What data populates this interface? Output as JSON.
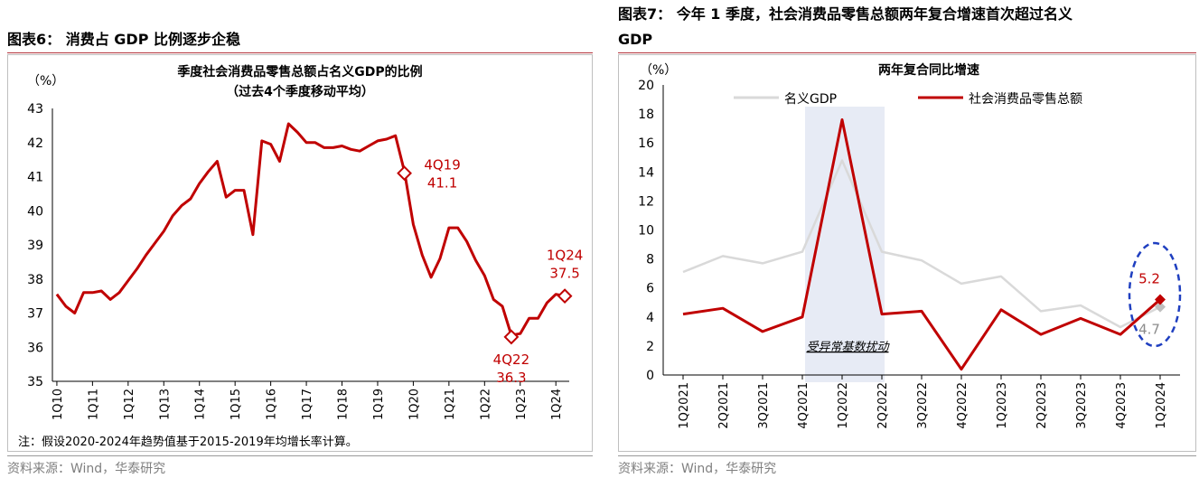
{
  "left_panel": {
    "header": "图表6： 消费占 GDP 比例逐步企稳",
    "source": "资料来源：Wind，华泰研究"
  },
  "right_panel": {
    "header_line1": "图表7： 今年 1 季度，社会消费品零售总额两年复合增速首次超过名义",
    "header_line2": "GDP",
    "source": "资料来源：Wind，华泰研究"
  },
  "colors": {
    "header_rule": "#b4343c",
    "series_red": "#c00000",
    "series_grey": "#d9d9d9",
    "shade": "#e7ebf5",
    "dashed_ellipse": "#1f3fc0"
  },
  "chart_data": [
    {
      "type": "line",
      "title": "季度社会消费品零售总额占名义GDP的比例",
      "subtitle": "（过去4个季度移动平均）",
      "ylabel": "（%）",
      "ylim": [
        35,
        43
      ],
      "yticks": [
        35,
        36,
        37,
        38,
        39,
        40,
        41,
        42,
        43
      ],
      "x_tick_labels": [
        "1Q10",
        "1Q11",
        "1Q12",
        "1Q13",
        "1Q14",
        "1Q15",
        "1Q16",
        "1Q17",
        "1Q18",
        "1Q19",
        "1Q20",
        "1Q21",
        "1Q22",
        "1Q23",
        "1Q24"
      ],
      "x_count": 58,
      "series": [
        {
          "values": [
            37.55,
            37.2,
            37.0,
            37.6,
            37.6,
            37.65,
            37.4,
            37.6,
            37.95,
            38.3,
            38.7,
            39.05,
            39.4,
            39.85,
            40.15,
            40.35,
            40.8,
            41.15,
            41.45,
            40.4,
            40.6,
            40.6,
            39.3,
            42.05,
            41.95,
            41.45,
            42.55,
            42.3,
            42.0,
            42.0,
            41.85,
            41.85,
            41.9,
            41.8,
            41.75,
            41.9,
            42.05,
            42.1,
            42.2,
            41.15,
            39.6,
            38.7,
            38.05,
            38.6,
            39.5,
            39.5,
            39.1,
            38.55,
            38.1,
            37.4,
            37.2,
            36.35,
            36.4,
            36.85,
            36.85,
            37.3,
            37.55,
            37.5
          ],
          "color": "#c00000"
        }
      ],
      "markers": [
        {
          "index": 39,
          "value": 41.1,
          "label_top": "4Q19",
          "label_bottom": "41.1"
        },
        {
          "index": 51,
          "value": 36.3,
          "label_top": "4Q22",
          "label_bottom": "36.3"
        },
        {
          "index": 57,
          "value": 37.5,
          "label_top": "1Q24",
          "label_bottom": "37.5"
        }
      ],
      "note": "注：假设2020-2024年趋势值基于2015-2019年均增长率计算。"
    },
    {
      "type": "line",
      "title": "两年复合同比增速",
      "ylabel": "（%）",
      "ylim": [
        0,
        20
      ],
      "yticks": [
        0,
        2,
        4,
        6,
        8,
        10,
        12,
        14,
        16,
        18,
        20
      ],
      "categories": [
        "1Q2021",
        "2Q2021",
        "3Q2021",
        "4Q2021",
        "1Q2022",
        "2Q2022",
        "3Q2022",
        "4Q2022",
        "1Q2023",
        "2Q2023",
        "3Q2023",
        "4Q2023",
        "1Q2024"
      ],
      "series": [
        {
          "name": "名义GDP",
          "color": "#d9d9d9",
          "values": [
            7.1,
            8.2,
            7.7,
            8.5,
            14.8,
            8.5,
            7.9,
            6.3,
            6.8,
            4.4,
            4.8,
            3.3,
            4.7
          ]
        },
        {
          "name": "社会消费品零售总额",
          "color": "#c00000",
          "values": [
            4.2,
            4.6,
            3.0,
            4.0,
            17.6,
            4.2,
            4.4,
            0.4,
            4.5,
            2.8,
            3.9,
            2.8,
            5.2
          ]
        }
      ],
      "shaded_region": {
        "from": "4Q2021",
        "to": "2Q2022",
        "label": "受异常基数扰动"
      },
      "end_labels": {
        "red": "5.2",
        "grey": "4.7"
      },
      "legend_position": "top"
    }
  ]
}
